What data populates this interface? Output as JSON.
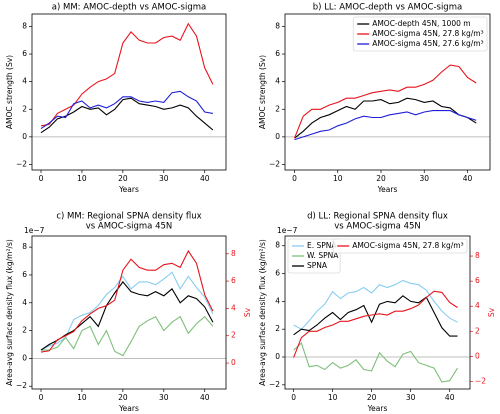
{
  "chart_data": [
    {
      "type": "line",
      "title": "a) MM: AMOC-depth vs AMOC-sigma",
      "xlabel": "Years",
      "ylabel": "AMOC strength (Sv)",
      "x": [
        0,
        2,
        4,
        6,
        8,
        10,
        12,
        14,
        16,
        18,
        20,
        22,
        24,
        26,
        28,
        30,
        32,
        34,
        36,
        38,
        40,
        42
      ],
      "xlim": [
        -2.2,
        45.2
      ],
      "xticks": [
        0,
        10,
        20,
        30,
        40
      ],
      "ylim": [
        -2.4,
        8.9
      ],
      "yticks": [
        {
          "value": -2,
          "label": "−2"
        },
        0,
        2,
        4,
        6,
        8
      ],
      "zero_line": true,
      "series": [
        {
          "color": "#000000",
          "values": [
            0.3,
            0.7,
            1.3,
            1.5,
            1.8,
            2.2,
            2.0,
            2.1,
            1.6,
            2.0,
            2.7,
            2.8,
            2.4,
            2.3,
            2.2,
            2.0,
            2.1,
            2.3,
            2.1,
            1.5,
            1.0,
            0.5
          ]
        },
        {
          "color": "#e8141c",
          "values": [
            0.8,
            0.9,
            1.7,
            2.0,
            2.3,
            3.1,
            3.6,
            4.0,
            4.2,
            4.6,
            6.8,
            7.6,
            7.0,
            6.8,
            6.8,
            7.2,
            7.3,
            7.0,
            8.2,
            7.3,
            5.0,
            3.8
          ]
        },
        {
          "color": "#1f1fd6",
          "values": [
            0.6,
            1.0,
            1.5,
            1.4,
            2.4,
            2.6,
            2.1,
            2.3,
            2.1,
            2.4,
            2.9,
            2.9,
            2.6,
            2.5,
            2.6,
            2.5,
            3.2,
            3.3,
            2.9,
            2.6,
            1.8,
            1.7
          ]
        }
      ]
    },
    {
      "type": "line",
      "title": "b) LL: AMOC-depth vs AMOC-sigma",
      "xlabel": "Years",
      "ylabel": "AMOC strength (Sv)",
      "x": [
        0,
        2,
        4,
        6,
        8,
        10,
        12,
        14,
        16,
        18,
        20,
        22,
        24,
        26,
        28,
        30,
        32,
        34,
        36,
        38,
        40,
        42
      ],
      "xlim": [
        -2.2,
        45.2
      ],
      "xticks": [
        0,
        10,
        20,
        30,
        40
      ],
      "ylim": [
        -2.4,
        8.9
      ],
      "yticks": [
        {
          "value": -2,
          "label": "−2"
        },
        0,
        2,
        4,
        6,
        8
      ],
      "zero_line": true,
      "legend": "upper right",
      "series": [
        {
          "name": "AMOC-depth 45N, 1000 m",
          "color": "#000000",
          "values": [
            -0.1,
            0.4,
            1.0,
            1.4,
            1.6,
            1.9,
            2.2,
            2.0,
            2.6,
            2.6,
            2.7,
            2.4,
            2.5,
            2.8,
            2.7,
            2.5,
            2.6,
            2.2,
            2.1,
            1.6,
            1.4,
            1.0
          ]
        },
        {
          "name": "AMOC-sigma 45N, 27.8 kg/m³",
          "color": "#e8141c",
          "values": [
            -0.1,
            1.5,
            2.0,
            2.0,
            2.3,
            2.5,
            2.8,
            2.8,
            3.0,
            3.2,
            3.3,
            3.4,
            3.3,
            3.6,
            3.6,
            3.8,
            4.1,
            4.7,
            5.2,
            5.1,
            4.3,
            3.9
          ]
        },
        {
          "name": "AMOC-sigma 45N, 27.6 kg/m³",
          "color": "#1f1fd6",
          "values": [
            -0.2,
            0.0,
            0.2,
            0.4,
            0.5,
            0.8,
            1.0,
            1.3,
            1.5,
            1.4,
            1.4,
            1.6,
            1.7,
            1.8,
            1.6,
            1.8,
            1.9,
            1.9,
            1.9,
            1.6,
            1.4,
            1.2
          ]
        }
      ]
    },
    {
      "type": "line",
      "title": [
        "c) MM: Regional SPNA density flux",
        "vs AMOC-sigma 45N"
      ],
      "xlabel": "Years",
      "ylabel": "Area-avg surface density flux (kg/m²/s)",
      "offset_text": "1e−7",
      "y2label": "Sv",
      "y2color": "#e8141c",
      "x": [
        0,
        2,
        4,
        6,
        8,
        10,
        12,
        14,
        16,
        18,
        20,
        22,
        24,
        26,
        28,
        30,
        32,
        34,
        36,
        38,
        40,
        42
      ],
      "xlim": [
        -2.2,
        45.2
      ],
      "xticks": [
        0,
        10,
        20,
        30,
        40
      ],
      "ylim": [
        -2.2,
        8.8
      ],
      "yticks": [
        {
          "value": -2,
          "label": "−2"
        },
        0,
        2,
        4,
        6,
        8
      ],
      "y2lim": [
        -1.9,
        9.3
      ],
      "y2ticks": [
        0,
        2,
        4,
        6,
        8
      ],
      "zero_line": true,
      "series": [
        {
          "color": "#87cdf0",
          "values": [
            0.6,
            0.9,
            1.1,
            1.5,
            2.8,
            3.1,
            3.3,
            3.8,
            4.6,
            5.1,
            5.9,
            5.0,
            5.5,
            5.5,
            5.3,
            5.7,
            6.2,
            5.0,
            5.9,
            5.1,
            4.4,
            3.2
          ]
        },
        {
          "color": "#7fbf7b",
          "values": [
            0.6,
            0.6,
            0.8,
            1.5,
            0.7,
            2.0,
            2.3,
            1.0,
            2.0,
            0.5,
            0.2,
            1.2,
            2.3,
            2.7,
            3.0,
            2.0,
            2.6,
            3.0,
            1.8,
            2.5,
            3.0,
            2.3
          ]
        },
        {
          "color": "#000000",
          "values": [
            0.6,
            1.0,
            1.3,
            1.7,
            2.0,
            2.5,
            3.0,
            2.3,
            3.8,
            4.7,
            5.5,
            4.8,
            4.6,
            4.5,
            4.8,
            4.5,
            5.0,
            4.0,
            4.5,
            4.3,
            3.7,
            2.6
          ]
        },
        {
          "color": "#e8141c",
          "axis": "y2",
          "values": [
            0.8,
            0.9,
            1.7,
            2.0,
            2.3,
            3.1,
            3.6,
            4.0,
            4.2,
            4.6,
            6.8,
            7.6,
            7.0,
            6.8,
            6.8,
            7.2,
            7.3,
            7.0,
            8.2,
            7.3,
            5.0,
            3.8
          ]
        }
      ]
    },
    {
      "type": "line",
      "title": [
        "d) LL: Regional SPNA density flux",
        "vs AMOC-sigma 45N"
      ],
      "xlabel": "Years",
      "ylabel": "Area-avg surface density flux (kg/m²/s)",
      "offset_text": "1e−7",
      "y2label": "Sv",
      "y2color": "#e8141c",
      "x": [
        0,
        2,
        4,
        6,
        8,
        10,
        12,
        14,
        16,
        18,
        20,
        22,
        24,
        26,
        28,
        30,
        32,
        34,
        36,
        38,
        40,
        42
      ],
      "xlim": [
        -2.2,
        45.2
      ],
      "xticks": [
        0,
        10,
        20,
        30,
        40
      ],
      "ylim": [
        -2.3,
        8.7
      ],
      "yticks": [
        {
          "value": -2,
          "label": "−2"
        },
        0,
        2,
        4,
        6,
        8
      ],
      "y2lim": [
        -2.6,
        9.6
      ],
      "y2ticks": [
        {
          "value": -2,
          "label": "−2"
        },
        0,
        2,
        4,
        6,
        8
      ],
      "zero_line": true,
      "legend": "upper left",
      "legend2": "upper right",
      "series": [
        {
          "name": "E. SPNA",
          "color": "#87cdf0",
          "values": [
            2.3,
            2.0,
            2.6,
            3.3,
            3.8,
            4.7,
            4.2,
            4.6,
            4.7,
            5.0,
            4.6,
            5.2,
            5.0,
            5.2,
            5.5,
            5.3,
            5.2,
            4.8,
            4.0,
            3.3,
            2.8,
            2.5
          ]
        },
        {
          "name": "W. SPNA",
          "color": "#7fbf7b",
          "values": [
            0.5,
            1.0,
            -0.7,
            -0.6,
            -0.9,
            -0.4,
            -0.8,
            -0.6,
            -0.2,
            -0.9,
            -1.0,
            0.3,
            -0.3,
            -0.7,
            0.2,
            0.4,
            -0.4,
            -0.6,
            -0.8,
            -1.8,
            -1.7,
            -0.8
          ]
        },
        {
          "name": "SPNA",
          "color": "#000000",
          "values": [
            1.6,
            2.0,
            1.9,
            2.3,
            2.8,
            3.2,
            2.7,
            3.2,
            3.4,
            3.7,
            2.5,
            3.8,
            4.0,
            3.9,
            4.4,
            4.0,
            3.9,
            4.3,
            3.2,
            2.1,
            1.5,
            1.5
          ]
        },
        {
          "name": "AMOC-sigma 45N, 27.8 kg/m³",
          "color": "#e8141c",
          "axis": "y2",
          "values": [
            -0.1,
            1.5,
            2.0,
            2.0,
            2.3,
            2.5,
            2.8,
            2.8,
            3.0,
            3.2,
            3.3,
            3.4,
            3.3,
            3.6,
            3.6,
            3.8,
            4.1,
            4.7,
            5.2,
            5.1,
            4.3,
            3.9
          ]
        }
      ]
    }
  ]
}
